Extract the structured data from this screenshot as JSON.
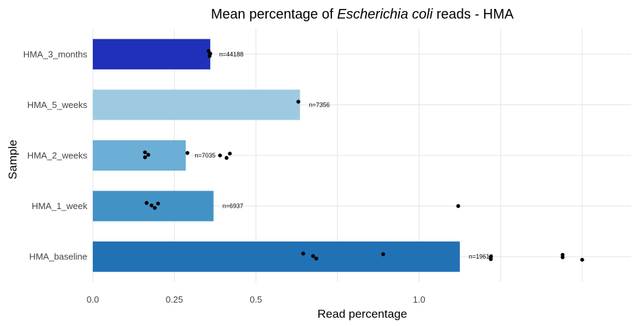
{
  "chart_data": {
    "type": "bar",
    "orientation": "horizontal",
    "title_parts": {
      "before": "Mean percentage of ",
      "italic": "Escherichia coli",
      "after": " reads - HMA"
    },
    "xlabel": "Read percentage",
    "ylabel": "Sample",
    "xlim": [
      0,
      1.65
    ],
    "x_ticks": [
      0.0,
      0.25,
      0.5,
      0.75,
      1.0,
      1.25,
      1.5
    ],
    "x_tick_labels": [
      "0.0",
      "0.25",
      "0.5",
      "",
      "1.0",
      "",
      ""
    ],
    "grid": true,
    "categories": [
      "HMA_3_months",
      "HMA_5_weeks",
      "HMA_2_weeks",
      "HMA_1_week",
      "HMA_baseline"
    ],
    "values": [
      0.36,
      0.635,
      0.285,
      0.37,
      1.125
    ],
    "colors": [
      "#2130b8",
      "#9ecae1",
      "#6baed6",
      "#4292c6",
      "#2171b5"
    ],
    "count_labels": [
      "n=44188",
      "n=7356",
      "n=7035",
      "n=6937",
      "n=19610"
    ],
    "points": [
      [
        0.355,
        0.36,
        0.358
      ],
      [
        0.63
      ],
      [
        0.16,
        0.17,
        0.16,
        0.29,
        0.39,
        0.41,
        0.42
      ],
      [
        0.165,
        0.18,
        0.19,
        0.2,
        1.12
      ],
      [
        0.645,
        0.675,
        0.685,
        0.89,
        1.22,
        1.22,
        1.44,
        1.44,
        1.5
      ]
    ]
  }
}
